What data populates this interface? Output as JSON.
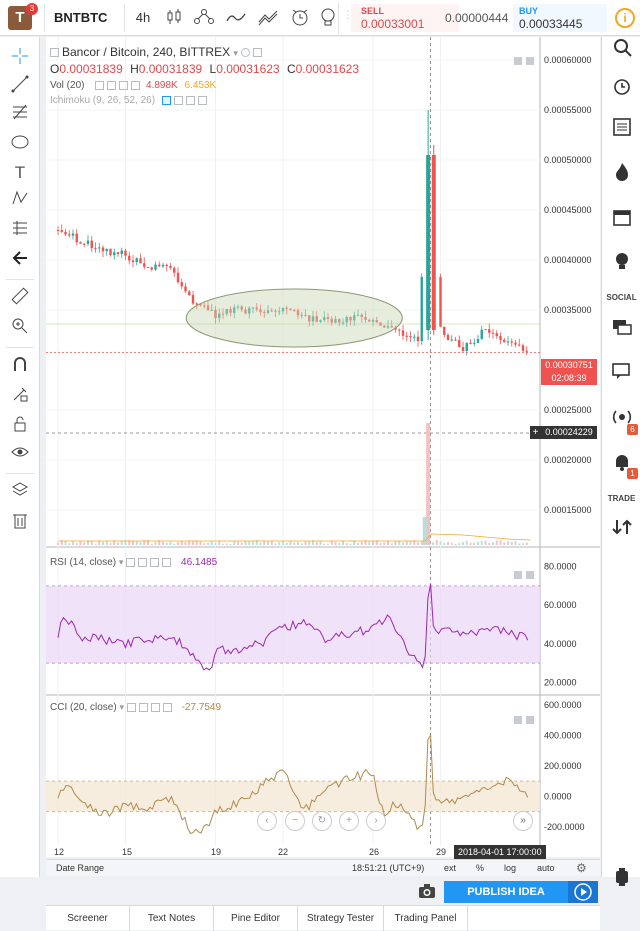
{
  "topbar": {
    "logo_letter": "T",
    "logo_badge": "3",
    "symbol": "BNTBTC",
    "interval": "4h",
    "tools": [
      "candles-icon",
      "compare-icon",
      "indicators-icon",
      "templates-icon",
      "alert-icon",
      "idea-icon"
    ],
    "sell_label": "SELL",
    "sell_price": "0.00033001",
    "spread": "0.00000444",
    "buy_label": "BUY",
    "buy_price": "0.00033445"
  },
  "chart": {
    "title": "Bancor / Bitcoin, 240, BITTREX",
    "ohlc": {
      "o_label": "O",
      "o": "0.00031839",
      "h_label": "H",
      "h": "0.00031839",
      "l_label": "L",
      "l": "0.00031623",
      "c_label": "C",
      "c": "0.00031623"
    },
    "vol_label": "Vol (20)",
    "vol_value1": "4.898K",
    "vol_value2": "6.453K",
    "ichimoku_label": "Ichimoku (9, 26, 52, 26)",
    "price_axis": [
      "0.00060000",
      "0.00055000",
      "0.00050000",
      "0.00045000",
      "0.00040000",
      "0.00035000",
      "0.00025000",
      "0.00020000",
      "0.00015000"
    ],
    "last_price_tag": "0.00030751",
    "countdown_tag": "02:08:39",
    "crosshair_price_tag": "0.00024229",
    "rsi_label": "RSI (14, close)",
    "rsi_value": "46.1485",
    "rsi_axis": [
      "80.0000",
      "60.0000",
      "40.0000",
      "20.0000"
    ],
    "cci_label": "CCI (20, close)",
    "cci_value": "-27.7549",
    "cci_axis": [
      "600.0000",
      "400.0000",
      "200.0000",
      "0.0000",
      "-200.0000"
    ],
    "time_axis": [
      "12",
      "15",
      "19",
      "22",
      "26",
      "29"
    ],
    "crosshair_time": "2018-04-01 17:00:00"
  },
  "daterow": {
    "date_range": "Date Range",
    "clock": "18:51:21 (UTC+9)",
    "ext": "ext",
    "pct": "%",
    "log": "log",
    "auto": "auto"
  },
  "publish": {
    "label": "PUBLISH IDEA"
  },
  "bottom_tabs": [
    "Screener",
    "Text Notes",
    "Pine Editor",
    "Strategy Tester",
    "Trading Panel"
  ],
  "right_panel": {
    "social_label": "SOCIAL",
    "trade_label": "TRADE",
    "badge_stream": "6",
    "badge_notif": "1"
  },
  "colors": {
    "up": "#26a69a",
    "down": "#ef5350",
    "rsi": "#9c27b0",
    "cci": "#b08a4a",
    "accent": "#2196f3"
  },
  "chart_data": [
    {
      "type": "candlestick",
      "title": "Bancor / Bitcoin, 240, BITTREX",
      "x_ticks": [
        "12",
        "15",
        "19",
        "22",
        "26",
        "29"
      ],
      "ylim": [
        0.00015,
        0.0006
      ],
      "close_path": [
        [
          12,
          0.00043
        ],
        [
          13,
          0.00042
        ],
        [
          14,
          0.00041
        ],
        [
          15,
          0.000405
        ],
        [
          16,
          0.000395
        ],
        [
          17,
          0.00039
        ],
        [
          18,
          0.00036
        ],
        [
          19,
          0.000345
        ],
        [
          20,
          0.00035
        ],
        [
          21,
          0.000348
        ],
        [
          22,
          0.00035
        ],
        [
          23,
          0.000342
        ],
        [
          24,
          0.00034
        ],
        [
          25,
          0.000342
        ],
        [
          26,
          0.00034
        ],
        [
          27,
          0.00033
        ],
        [
          28,
          0.00032
        ],
        [
          28.5,
          0.000505
        ],
        [
          29,
          0.00033
        ],
        [
          30,
          0.00031
        ],
        [
          31,
          0.00033
        ],
        [
          32,
          0.000318
        ],
        [
          33,
          0.00031
        ]
      ],
      "spike_high": 0.00055,
      "last": 0.00030751
    },
    {
      "type": "bar",
      "name": "Vol (20)",
      "description_values": [
        "4.898K",
        "6.453K"
      ]
    },
    {
      "type": "line",
      "name": "RSI (14, close)",
      "ylim": [
        15,
        85
      ],
      "band": [
        30,
        70
      ],
      "last": 46.1485
    },
    {
      "type": "line",
      "name": "CCI (20, close)",
      "ylim": [
        -300,
        620
      ],
      "band": [
        -100,
        100
      ],
      "last": -27.7549
    }
  ]
}
